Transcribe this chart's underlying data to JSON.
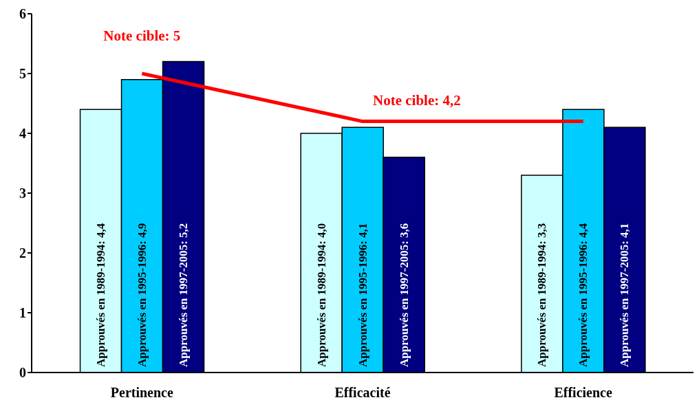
{
  "chart_data": {
    "type": "bar",
    "categories": [
      "Pertinence",
      "Efficacité",
      "Efficience"
    ],
    "series": [
      {
        "color": "#ccffff",
        "values": [
          4.4,
          4.0,
          3.3
        ],
        "value_labels": [
          "Approuvés en 1989-1994: 4,4",
          "Approuvés en 1989-1994: 4,0",
          "Approuvés en 1989-1994: 3,3"
        ]
      },
      {
        "color": "#00ccff",
        "values": [
          4.9,
          4.1,
          4.4
        ],
        "value_labels": [
          "Approuvés en 1995-1996: 4,9",
          "Approuvés en 1995-1996: 4,1",
          "Approuvés en 1995-1996: 4,4"
        ]
      },
      {
        "color": "#000080",
        "values": [
          5.2,
          3.6,
          4.1
        ],
        "value_labels": [
          "Approuvés en 1997-2005: 5,2",
          "Approuvés en 1997-2005: 3,6",
          "Approuvés en 1997-2005: 4,1"
        ]
      },
      {
        "type": "line",
        "color": "#ff0000",
        "values": [
          5,
          4.2,
          4.2
        ]
      }
    ],
    "annotations": [
      {
        "text": "Note cible: 5",
        "x": "Pertinence",
        "y": 5
      },
      {
        "text": "Note cible: 4,2",
        "x": "Efficacité",
        "y": 4.2
      }
    ],
    "ylim": [
      0,
      6
    ],
    "yticks": [
      0,
      1,
      2,
      3,
      4,
      5,
      6
    ],
    "grid": false,
    "legend": false
  }
}
